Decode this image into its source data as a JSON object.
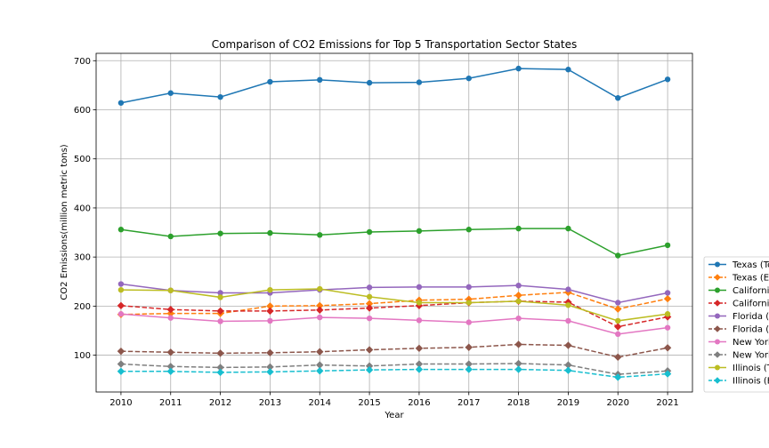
{
  "chart_data": {
    "type": "line",
    "title": "Comparison of CO2 Emissions for Top 5 Transportation Sector States",
    "xlabel": "Year",
    "ylabel": "CO2 Emissions(million metric tons)",
    "x": [
      2010,
      2011,
      2012,
      2013,
      2014,
      2015,
      2016,
      2017,
      2018,
      2019,
      2020,
      2021
    ],
    "xlim": [
      2009.5,
      2021.5
    ],
    "ylim": [
      25,
      715
    ],
    "yticks": [
      100,
      200,
      300,
      400,
      500,
      600,
      700
    ],
    "grid": true,
    "legend_position": "right, cut off at edge",
    "series": [
      {
        "name": "Texas (To",
        "color": "#1f77b4",
        "dash": "solid",
        "marker": "circle",
        "values": [
          614,
          634,
          626,
          657,
          661,
          655,
          656,
          664,
          684,
          682,
          624,
          662
        ]
      },
      {
        "name": "Texas (E",
        "color": "#ff7f0e",
        "dash": "dashed",
        "marker": "diamond",
        "values": [
          183,
          185,
          185,
          200,
          201,
          205,
          212,
          214,
          222,
          228,
          194,
          215
        ]
      },
      {
        "name": "Californi",
        "color": "#2ca02c",
        "dash": "solid",
        "marker": "circle",
        "values": [
          356,
          342,
          348,
          349,
          345,
          351,
          353,
          356,
          358,
          358,
          303,
          324
        ]
      },
      {
        "name": "Californi",
        "color": "#d62728",
        "dash": "dashed",
        "marker": "diamond",
        "values": [
          201,
          193,
          190,
          190,
          192,
          196,
          201,
          207,
          210,
          208,
          158,
          178
        ]
      },
      {
        "name": "Florida (",
        "color": "#9467bd",
        "dash": "solid",
        "marker": "circle",
        "values": [
          245,
          232,
          227,
          227,
          233,
          238,
          239,
          239,
          242,
          234,
          207,
          227
        ]
      },
      {
        "name": "Florida (",
        "color": "#8c564b",
        "dash": "dashed",
        "marker": "diamond",
        "values": [
          108,
          106,
          104,
          105,
          107,
          111,
          114,
          116,
          122,
          120,
          96,
          115
        ]
      },
      {
        "name": "New York",
        "color": "#e377c2",
        "dash": "solid",
        "marker": "circle",
        "values": [
          184,
          176,
          169,
          170,
          177,
          175,
          171,
          167,
          175,
          170,
          143,
          156
        ]
      },
      {
        "name": "New York",
        "color": "#7f7f7f",
        "dash": "dashed",
        "marker": "diamond",
        "values": [
          82,
          77,
          75,
          76,
          80,
          78,
          82,
          82,
          83,
          80,
          61,
          68
        ]
      },
      {
        "name": "Illinois (T",
        "color": "#bcbd22",
        "dash": "solid",
        "marker": "circle",
        "values": [
          233,
          232,
          218,
          233,
          235,
          219,
          207,
          207,
          210,
          202,
          170,
          184
        ]
      },
      {
        "name": "Illinois (E",
        "color": "#17becf",
        "dash": "dashed",
        "marker": "diamond",
        "values": [
          67,
          67,
          65,
          66,
          68,
          70,
          71,
          71,
          71,
          69,
          55,
          62
        ]
      }
    ]
  }
}
